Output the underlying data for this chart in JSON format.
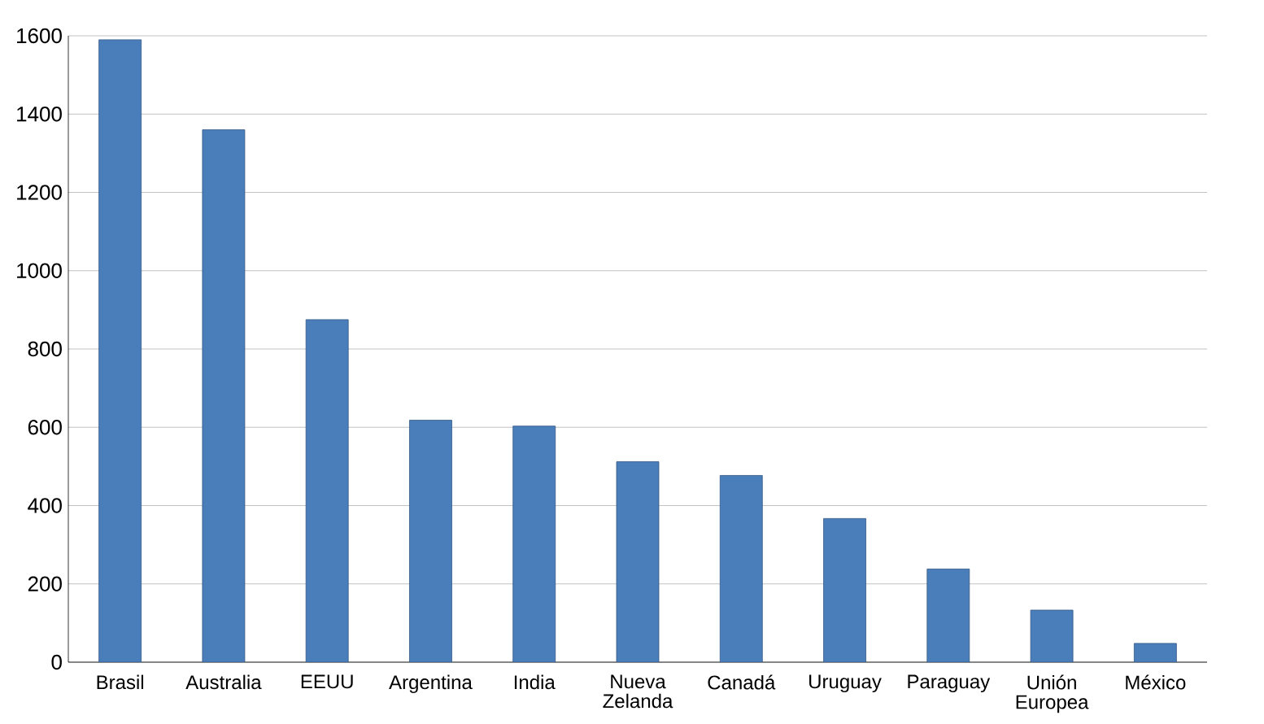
{
  "chart_data": {
    "type": "bar",
    "categories": [
      "Brasil",
      "Australia",
      "EEUU",
      "Argentina",
      "India",
      "Nueva Zelanda",
      "Canadá",
      "Uruguay",
      "Paraguay",
      "Unión Europea",
      "México"
    ],
    "values": [
      1590,
      1360,
      875,
      618,
      603,
      512,
      477,
      367,
      238,
      133,
      48
    ],
    "color": "#4a7ebb",
    "ylim": [
      0,
      1600
    ],
    "yticks": [
      0,
      200,
      400,
      600,
      800,
      1000,
      1200,
      1400,
      1600
    ],
    "grid": "y"
  }
}
